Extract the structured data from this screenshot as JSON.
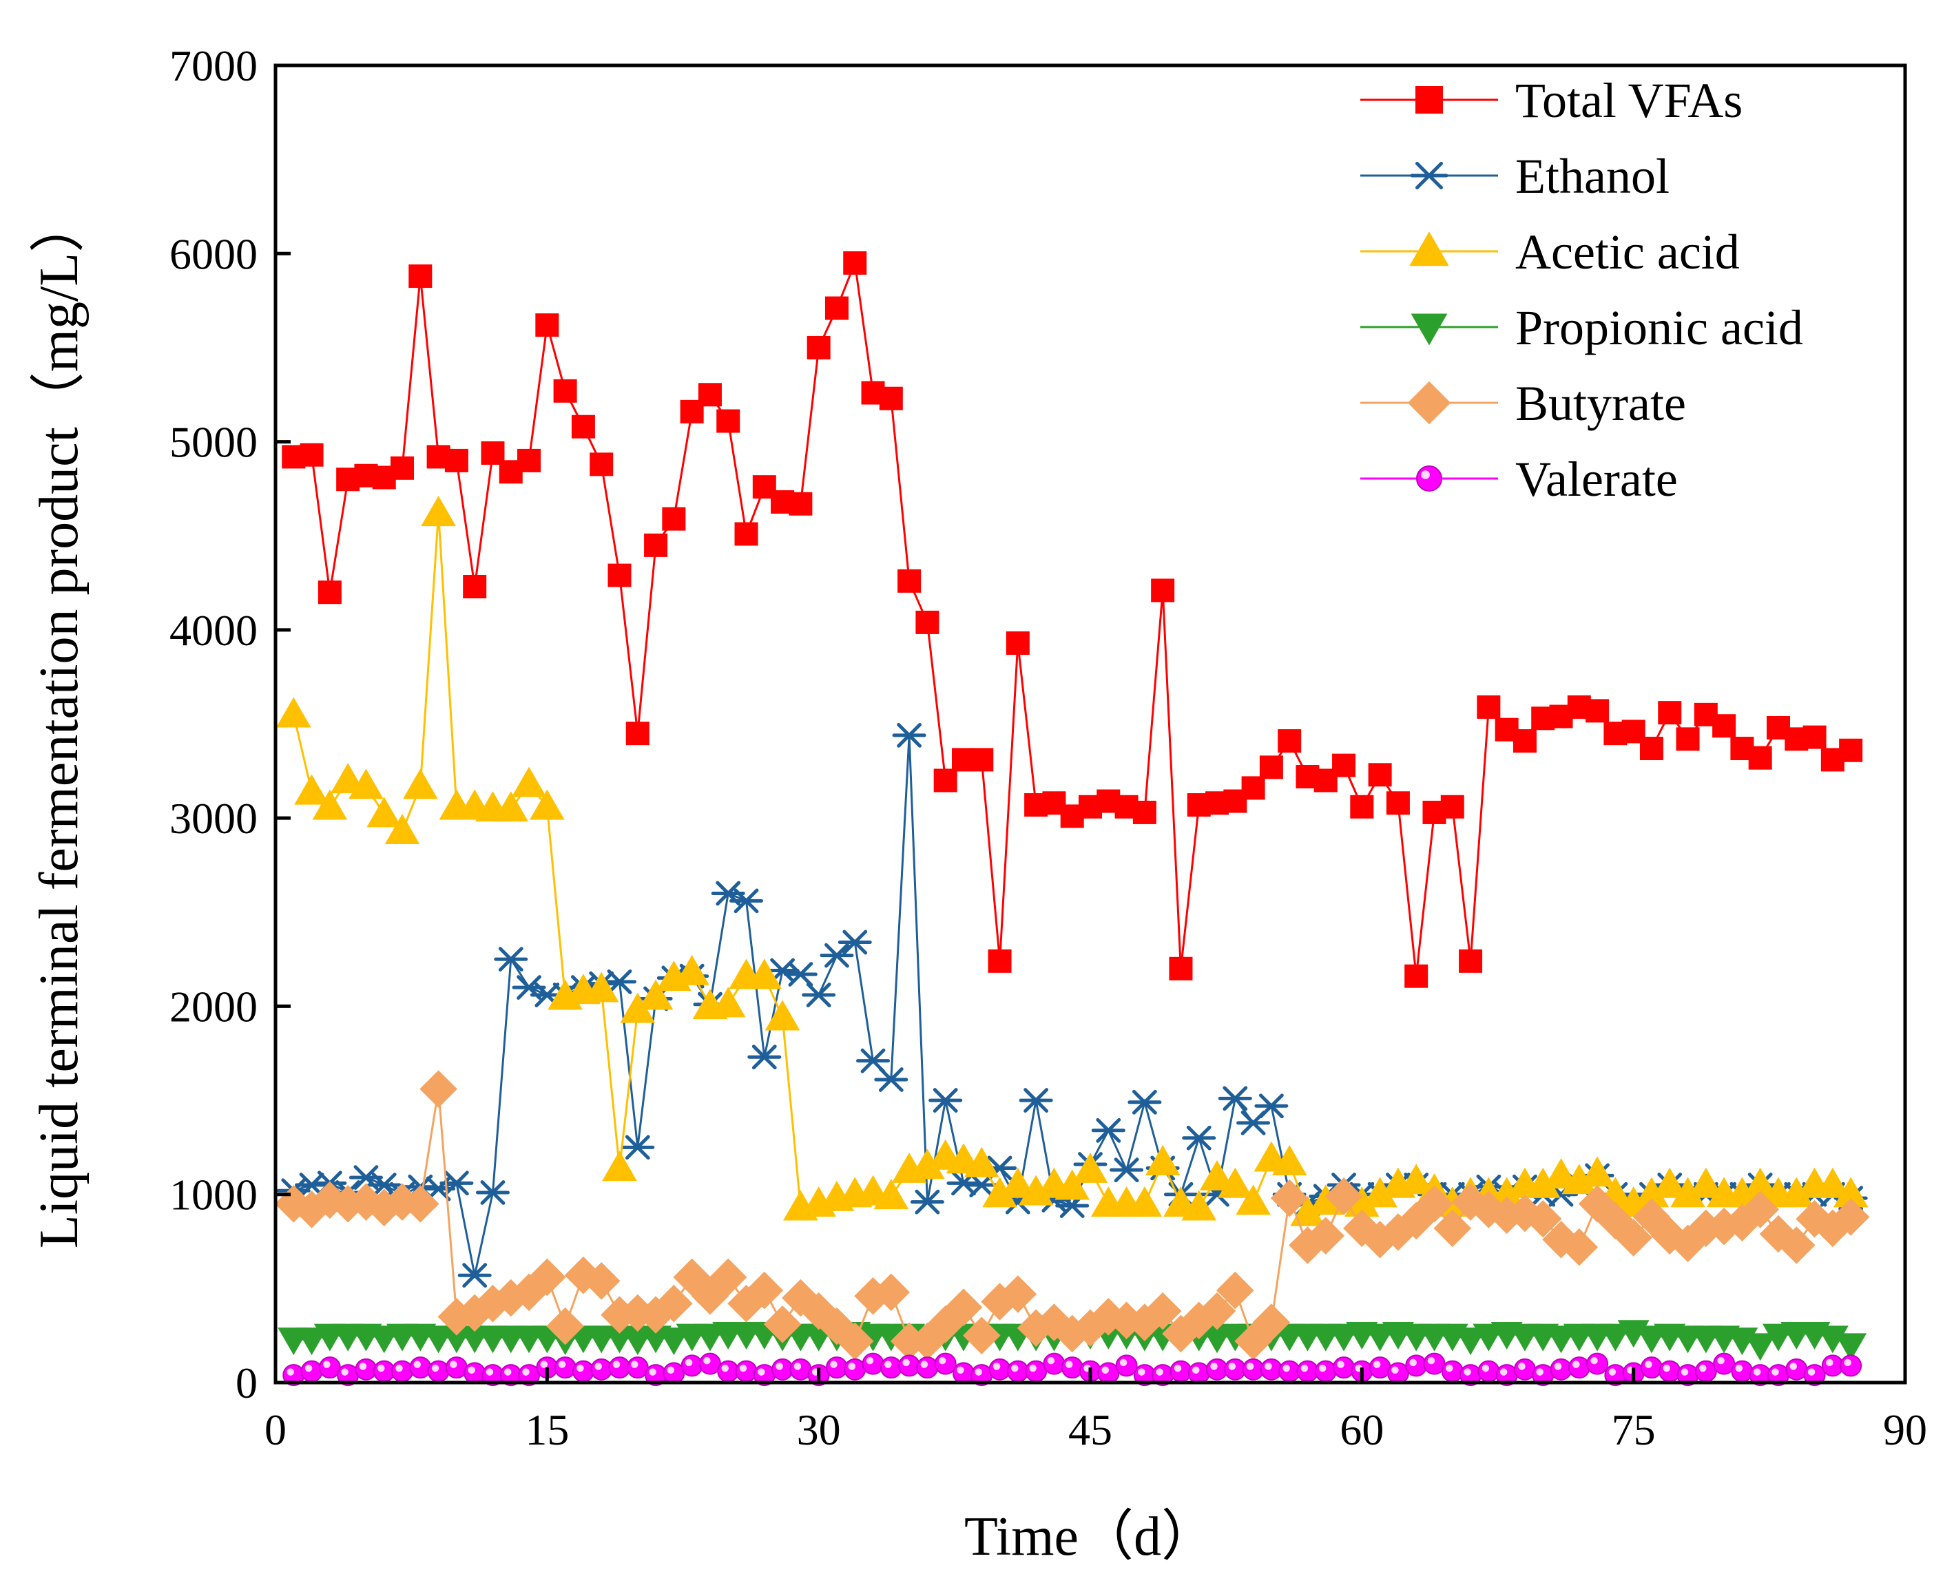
{
  "chart_data": {
    "type": "line",
    "title": "",
    "xlabel": "Time（d）",
    "ylabel": "Liquid terminal fermentation product（mg/L）",
    "xlim": [
      0,
      90
    ],
    "ylim": [
      0,
      7000
    ],
    "xticks": [
      "0",
      "15",
      "30",
      "45",
      "60",
      "75",
      "90"
    ],
    "yticks": [
      "0",
      "1000",
      "2000",
      "3000",
      "4000",
      "5000",
      "6000",
      "7000"
    ],
    "grid": false,
    "legend_position": "top-right",
    "x": [
      1,
      2,
      3,
      4,
      5,
      6,
      7,
      8,
      9,
      10,
      11,
      12,
      13,
      14,
      15,
      16,
      17,
      18,
      19,
      20,
      21,
      22,
      23,
      24,
      25,
      26,
      27,
      28,
      29,
      30,
      31,
      32,
      33,
      34,
      35,
      36,
      37,
      38,
      39,
      40,
      41,
      42,
      43,
      44,
      45,
      46,
      47,
      48,
      49,
      50,
      51,
      52,
      53,
      54,
      55,
      56,
      57,
      58,
      59,
      60,
      61,
      62,
      63,
      64,
      65,
      66,
      67,
      68,
      69,
      70,
      71,
      72,
      73,
      74,
      75,
      76,
      77,
      78,
      79,
      80,
      81,
      82,
      83,
      84,
      85,
      86,
      87
    ],
    "series": [
      {
        "name": "Total VFAs",
        "color": "#ff0000",
        "marker": "square",
        "values": [
          4920,
          4930,
          4200,
          4800,
          4820,
          4810,
          4860,
          5880,
          4920,
          4900,
          4230,
          4940,
          4840,
          4900,
          5620,
          5270,
          5080,
          4880,
          4290,
          3450,
          4450,
          4590,
          5160,
          5250,
          5110,
          4510,
          4760,
          4680,
          4670,
          5500,
          5710,
          5950,
          5260,
          5230,
          4260,
          4040,
          3200,
          3310,
          3310,
          2240,
          3930,
          3070,
          3080,
          3010,
          3060,
          3090,
          3060,
          3030,
          4210,
          2200,
          3070,
          3080,
          3090,
          3160,
          3270,
          3410,
          3220,
          3200,
          3280,
          3060,
          3230,
          3080,
          2160,
          3030,
          3060,
          2240,
          3590,
          3470,
          3410,
          3530,
          3540,
          3590,
          3570,
          3450,
          3460,
          3370,
          3560,
          3420,
          3550,
          3490,
          3370,
          3320,
          3480,
          3420,
          3430,
          3310,
          3360
        ]
      },
      {
        "name": "Ethanol",
        "color": "#1f5f99",
        "marker": "asterisk",
        "values": [
          1020,
          1050,
          1060,
          1010,
          1090,
          1050,
          1000,
          1040,
          1030,
          1060,
          570,
          1010,
          2250,
          2100,
          2060,
          2060,
          2100,
          2120,
          2130,
          1250,
          2040,
          2150,
          2160,
          2010,
          2600,
          2560,
          1730,
          2190,
          2170,
          2060,
          2270,
          2340,
          1710,
          1610,
          3440,
          960,
          1500,
          1060,
          1050,
          1140,
          960,
          1500,
          970,
          940,
          1160,
          1340,
          1130,
          1490,
          1140,
          1000,
          1300,
          1000,
          1510,
          1380,
          1470,
          1000,
          950,
          990,
          1050,
          1000,
          1000,
          1050,
          1050,
          1000,
          1000,
          1000,
          1040,
          1000,
          1040,
          1000,
          1000,
          1050,
          1100,
          1000,
          950,
          1000,
          1050,
          1000,
          1000,
          1000,
          1000,
          1050,
          1000,
          1000,
          1000,
          1000,
          980
        ]
      },
      {
        "name": "Acetic acid",
        "color": "#ffc000",
        "marker": "triangle-up",
        "values": [
          3550,
          3140,
          3060,
          3200,
          3170,
          3020,
          2930,
          3170,
          4620,
          3060,
          3060,
          3050,
          3050,
          3180,
          3060,
          2050,
          2080,
          2090,
          1140,
          1980,
          2050,
          2150,
          2180,
          2000,
          2010,
          2160,
          2160,
          1940,
          930,
          950,
          980,
          1000,
          1010,
          990,
          1130,
          1150,
          1200,
          1180,
          1160,
          1000,
          1050,
          1010,
          1050,
          1040,
          1130,
          950,
          950,
          950,
          1170,
          950,
          930,
          1090,
          1050,
          960,
          1190,
          1170,
          900,
          960,
          1000,
          950,
          1000,
          1050,
          1070,
          1020,
          950,
          1000,
          1000,
          1000,
          1050,
          1050,
          1100,
          1070,
          1110,
          1000,
          950,
          1000,
          1050,
          1000,
          1050,
          1000,
          1000,
          1050,
          1000,
          1000,
          1050,
          1050,
          1000
        ]
      },
      {
        "name": "Propionic acid",
        "color": "#2ca02c",
        "marker": "triangle-down",
        "values": [
          230,
          230,
          250,
          250,
          250,
          240,
          250,
          250,
          240,
          240,
          240,
          240,
          240,
          240,
          240,
          230,
          240,
          240,
          240,
          230,
          240,
          230,
          250,
          250,
          260,
          260,
          260,
          250,
          250,
          250,
          250,
          260,
          250,
          250,
          250,
          240,
          250,
          250,
          250,
          250,
          250,
          250,
          250,
          250,
          260,
          260,
          260,
          250,
          250,
          250,
          250,
          240,
          250,
          250,
          250,
          250,
          250,
          250,
          250,
          260,
          250,
          260,
          250,
          250,
          250,
          230,
          250,
          260,
          250,
          250,
          240,
          250,
          250,
          250,
          270,
          240,
          250,
          240,
          240,
          240,
          230,
          200,
          250,
          260,
          260,
          240,
          200
        ]
      },
      {
        "name": "Butyrate",
        "color": "#f4a460",
        "marker": "diamond",
        "values": [
          950,
          920,
          970,
          950,
          960,
          930,
          960,
          950,
          1560,
          350,
          370,
          420,
          450,
          480,
          560,
          300,
          570,
          540,
          360,
          370,
          360,
          420,
          560,
          460,
          560,
          420,
          490,
          310,
          450,
          380,
          300,
          220,
          460,
          480,
          220,
          220,
          310,
          400,
          250,
          430,
          470,
          290,
          320,
          260,
          290,
          350,
          330,
          320,
          380,
          260,
          330,
          380,
          490,
          220,
          320,
          980,
          730,
          780,
          990,
          820,
          760,
          800,
          860,
          950,
          820,
          960,
          920,
          890,
          900,
          870,
          760,
          720,
          950,
          860,
          770,
          880,
          780,
          740,
          820,
          830,
          850,
          920,
          790,
          730,
          870,
          820,
          880
        ]
      },
      {
        "name": "Valerate",
        "color": "#ff00ff",
        "marker": "circle",
        "values": [
          40,
          60,
          80,
          40,
          70,
          60,
          60,
          80,
          60,
          80,
          50,
          40,
          40,
          40,
          80,
          80,
          60,
          70,
          80,
          80,
          40,
          50,
          90,
          100,
          60,
          60,
          40,
          70,
          70,
          40,
          80,
          70,
          100,
          80,
          90,
          80,
          100,
          50,
          40,
          70,
          60,
          60,
          100,
          80,
          60,
          50,
          90,
          40,
          40,
          60,
          50,
          70,
          70,
          70,
          70,
          60,
          60,
          60,
          80,
          60,
          80,
          50,
          90,
          100,
          60,
          40,
          60,
          40,
          70,
          40,
          70,
          80,
          100,
          40,
          50,
          80,
          60,
          40,
          60,
          100,
          60,
          40,
          40,
          70,
          40,
          90,
          90
        ]
      }
    ]
  }
}
